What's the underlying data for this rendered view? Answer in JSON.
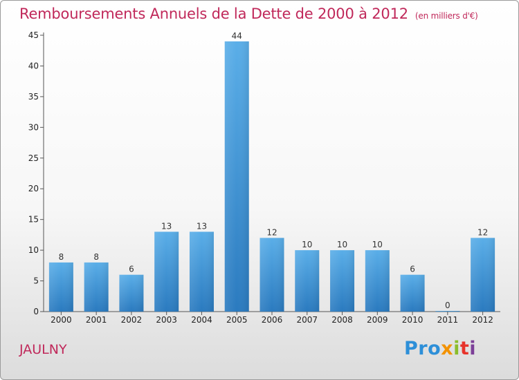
{
  "header": {
    "title": "Remboursements Annuels de la Dette de 2000 à 2012",
    "unit": "(en milliers d'€)"
  },
  "footer": {
    "place": "JAULNY",
    "brand": [
      "Pro",
      "x",
      "i",
      "t",
      "i"
    ]
  },
  "colors": {
    "title": "#c0285a",
    "bar_top": "#5aaee8",
    "bar_bottom": "#2a7abf"
  },
  "chart_data": {
    "type": "bar",
    "title": "Remboursements Annuels de la Dette de 2000 à 2012",
    "subtitle": "(en milliers d'€)",
    "categories": [
      "2000",
      "2001",
      "2002",
      "2003",
      "2004",
      "2005",
      "2006",
      "2007",
      "2008",
      "2009",
      "2010",
      "2011",
      "2012"
    ],
    "values": [
      8,
      8,
      6,
      13,
      13,
      44,
      12,
      10,
      10,
      10,
      6,
      0,
      12
    ],
    "data_labels": [
      "8",
      "8",
      "6",
      "13",
      "13",
      "44",
      "12",
      "10",
      "10",
      "10",
      "6",
      "0",
      "12"
    ],
    "yticks": [
      "0",
      "5",
      "10",
      "15",
      "20",
      "25",
      "30",
      "35",
      "40",
      "45"
    ],
    "ylim": [
      0,
      45
    ],
    "xlabel": "",
    "ylabel": "",
    "grid": false,
    "legend": "none"
  }
}
